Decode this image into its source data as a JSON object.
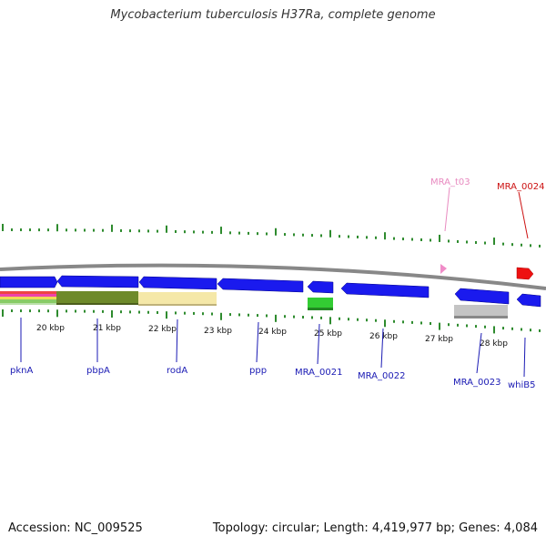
{
  "title": "Mycobacterium tuberculosis H37Ra, complete genome",
  "accession": "Accession: NC_009525",
  "summary": "Topology: circular; Length: 4,419,977 bp; Genes: 4,084",
  "colors": {
    "cds": "#1a1aee",
    "trna": "#f08cc8",
    "misc_red": "#ee1111",
    "ticks": "#2e8b2e",
    "backbone": "#888888",
    "label_blue": "#1a1ab4",
    "label_pink": "#e88ac0",
    "label_red": "#cc1111"
  },
  "scale": {
    "unit": "kbp",
    "labels": [
      "20 kbp",
      "21 kbp",
      "22 kbp",
      "23 kbp",
      "24 kbp",
      "25 kbp",
      "26 kbp",
      "27 kbp",
      "28 kbp"
    ]
  },
  "labels": {
    "pknA": "pknA",
    "pbpA": "pbpA",
    "rodA": "rodA",
    "ppp": "ppp",
    "mra0021": "MRA_0021",
    "mra0022": "MRA_0022",
    "mra0023": "MRA_0023",
    "whiB5": "whiB5",
    "trna": "MRA_t03",
    "mra0024": "MRA_0024"
  }
}
